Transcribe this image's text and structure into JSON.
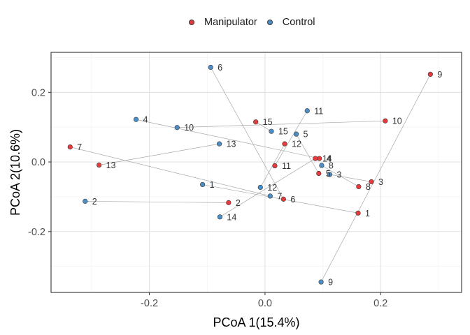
{
  "chart_data": {
    "type": "scatter",
    "xlabel": "PCoA 1(15.4%)",
    "ylabel": "PCoA 2(10.6%)",
    "xlim": [
      -0.37,
      0.34
    ],
    "ylim": [
      -0.375,
      0.315
    ],
    "xticks": [
      -0.2,
      0.0,
      0.2
    ],
    "xtick_labels": [
      "-0.2",
      "0.0",
      "0.2"
    ],
    "yticks": [
      -0.2,
      0.0,
      0.2
    ],
    "ytick_labels": [
      "-0.2",
      "0.0",
      "0.2"
    ],
    "grid": true,
    "legend_position": "top",
    "colors": {
      "Manipulator": "#e8393c",
      "Control": "#4b8fc9",
      "pair_line": "#a8a8a8"
    },
    "series": [
      {
        "name": "Manipulator",
        "points": [
          {
            "label": "1",
            "x": 0.161,
            "y": -0.147
          },
          {
            "label": "2",
            "x": -0.063,
            "y": -0.117
          },
          {
            "label": "3",
            "x": 0.184,
            "y": -0.057
          },
          {
            "label": "4",
            "x": 0.094,
            "y": 0.01
          },
          {
            "label": "5",
            "x": 0.093,
            "y": -0.033
          },
          {
            "label": "6",
            "x": 0.032,
            "y": -0.107
          },
          {
            "label": "7",
            "x": -0.337,
            "y": 0.043
          },
          {
            "label": "8",
            "x": 0.162,
            "y": -0.071
          },
          {
            "label": "9",
            "x": 0.286,
            "y": 0.252
          },
          {
            "label": "10",
            "x": 0.208,
            "y": 0.118
          },
          {
            "label": "11",
            "x": 0.017,
            "y": -0.011
          },
          {
            "label": "12",
            "x": 0.034,
            "y": 0.052
          },
          {
            "label": "13",
            "x": -0.287,
            "y": -0.009
          },
          {
            "label": "14",
            "x": 0.087,
            "y": 0.01
          },
          {
            "label": "15",
            "x": -0.016,
            "y": 0.115
          }
        ]
      },
      {
        "name": "Control",
        "points": [
          {
            "label": "1",
            "x": -0.108,
            "y": -0.065
          },
          {
            "label": "2",
            "x": -0.311,
            "y": -0.113
          },
          {
            "label": "3",
            "x": 0.112,
            "y": -0.036
          },
          {
            "label": "4",
            "x": -0.223,
            "y": 0.122
          },
          {
            "label": "5",
            "x": 0.054,
            "y": 0.08
          },
          {
            "label": "6",
            "x": -0.094,
            "y": 0.272
          },
          {
            "label": "7",
            "x": 0.009,
            "y": -0.098
          },
          {
            "label": "8",
            "x": 0.098,
            "y": -0.01
          },
          {
            "label": "9",
            "x": 0.097,
            "y": -0.345
          },
          {
            "label": "10",
            "x": -0.152,
            "y": 0.099
          },
          {
            "label": "11",
            "x": 0.073,
            "y": 0.147
          },
          {
            "label": "12",
            "x": -0.008,
            "y": -0.073
          },
          {
            "label": "13",
            "x": -0.079,
            "y": 0.052
          },
          {
            "label": "14",
            "x": -0.078,
            "y": -0.158
          },
          {
            "label": "15",
            "x": 0.011,
            "y": 0.088
          }
        ]
      }
    ]
  }
}
